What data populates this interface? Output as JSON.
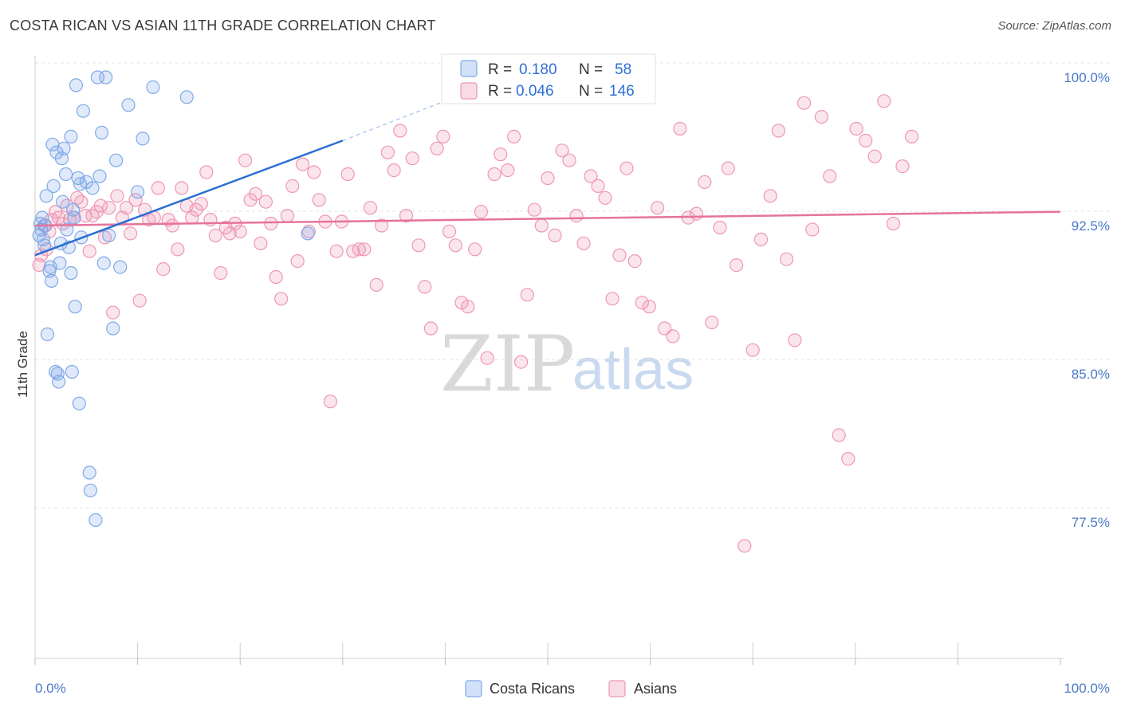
{
  "header": {
    "title": "COSTA RICAN VS ASIAN 11TH GRADE CORRELATION CHART",
    "source": "Source: ZipAtlas.com"
  },
  "watermark": {
    "zip": "ZIP",
    "atlas": "atlas"
  },
  "colors": {
    "blue": "#7fa9e8",
    "blue_fill": "rgba(127,169,232,0.25)",
    "blue_line": "#2b6fd1",
    "pink": "#ee97b3",
    "pink_fill": "rgba(238,151,179,0.25)",
    "pink_line": "#e5739b",
    "grid": "#e3e3e3",
    "tick_text": "#4a78c9"
  },
  "legend_box": {
    "rows": [
      {
        "r_label": "R =",
        "r_value": "0.180",
        "n_label": "N =",
        "n_value": "58"
      },
      {
        "r_label": "R =",
        "r_value": "0.046",
        "n_label": "N =",
        "n_value": "146"
      }
    ]
  },
  "bottom_legend": [
    "Costa Ricans",
    "Asians"
  ],
  "chart_data": {
    "type": "scatter",
    "title": "COSTA RICAN VS ASIAN 11TH GRADE CORRELATION CHART",
    "xlabel": "",
    "ylabel": "11th Grade",
    "xlim": [
      0,
      100
    ],
    "ylim": [
      70.0,
      101.0
    ],
    "x_tick_labels": [
      "0.0%",
      "100.0%"
    ],
    "y_ticks": [
      77.5,
      85.0,
      92.5,
      100.0
    ],
    "y_tick_labels": [
      "77.5%",
      "85.0%",
      "92.5%",
      "100.0%"
    ],
    "grid": true,
    "legend_position": "top-center",
    "series": [
      {
        "name": "Costa Ricans",
        "r": 0.18,
        "n": 58,
        "trend": {
          "x": [
            0.0,
            30.0
          ],
          "y": [
            91.0,
            96.8
          ],
          "dashed_to": [
            40.0,
            98.8
          ]
        },
        "x": [
          0.4,
          0.5,
          0.6,
          0.7,
          0.8,
          0.9,
          1.0,
          1.1,
          1.2,
          1.4,
          1.5,
          1.6,
          1.7,
          1.8,
          2.0,
          2.1,
          2.2,
          2.3,
          2.4,
          2.5,
          2.6,
          2.7,
          2.8,
          3.0,
          3.1,
          3.3,
          3.5,
          3.5,
          3.6,
          3.7,
          3.8,
          3.9,
          4.0,
          4.2,
          4.3,
          4.4,
          4.5,
          4.7,
          5.0,
          5.3,
          5.4,
          5.6,
          5.9,
          6.1,
          6.3,
          6.5,
          6.7,
          6.9,
          7.2,
          7.6,
          7.9,
          8.3,
          9.1,
          10.0,
          10.5,
          11.5,
          14.8,
          26.6
        ],
        "y": [
          92.0,
          92.6,
          92.3,
          92.9,
          91.8,
          91.5,
          92.5,
          94.0,
          87.0,
          90.2,
          90.4,
          89.7,
          96.6,
          94.5,
          85.1,
          96.2,
          85.0,
          84.6,
          90.6,
          91.6,
          95.9,
          93.7,
          96.4,
          95.1,
          92.3,
          91.4,
          97.0,
          90.1,
          85.1,
          93.3,
          92.9,
          88.4,
          99.6,
          94.9,
          83.5,
          94.6,
          91.9,
          98.3,
          94.7,
          80.0,
          79.1,
          94.4,
          77.6,
          100.0,
          95.0,
          97.2,
          90.6,
          100.0,
          92.0,
          87.3,
          95.8,
          90.4,
          98.6,
          94.2,
          96.9,
          99.5,
          99.0,
          92.1
        ]
      },
      {
        "name": "Asians",
        "r": 0.046,
        "n": 146,
        "trend": {
          "x": [
            0.0,
            100.0
          ],
          "y": [
            92.5,
            93.2
          ]
        },
        "x": [
          0.4,
          0.6,
          0.9,
          1.1,
          1.4,
          1.6,
          2.0,
          2.3,
          2.7,
          3.1,
          3.4,
          3.8,
          4.1,
          4.5,
          4.9,
          5.3,
          5.6,
          6.0,
          6.4,
          6.8,
          7.2,
          7.6,
          8.0,
          8.5,
          8.9,
          9.3,
          9.8,
          10.2,
          10.7,
          11.1,
          11.6,
          12.0,
          12.5,
          13.0,
          13.4,
          13.9,
          14.3,
          14.8,
          15.3,
          15.7,
          16.2,
          16.7,
          17.1,
          17.6,
          18.1,
          18.6,
          19.0,
          19.5,
          20.0,
          20.5,
          21.0,
          21.5,
          22.0,
          22.5,
          23.0,
          23.5,
          24.0,
          24.6,
          25.1,
          25.6,
          26.1,
          26.7,
          27.2,
          27.7,
          28.3,
          28.8,
          29.4,
          29.9,
          30.5,
          31.0,
          31.6,
          32.1,
          32.7,
          33.3,
          33.8,
          34.4,
          35.0,
          35.6,
          36.2,
          36.8,
          37.4,
          38.0,
          38.6,
          39.2,
          39.8,
          40.4,
          41.0,
          41.6,
          42.2,
          42.9,
          43.5,
          44.1,
          44.8,
          45.4,
          46.1,
          46.7,
          47.4,
          48.0,
          48.7,
          49.4,
          50.0,
          50.7,
          51.4,
          52.1,
          52.8,
          53.5,
          54.2,
          54.9,
          55.6,
          56.3,
          57.0,
          57.7,
          58.5,
          59.2,
          59.9,
          60.7,
          61.4,
          62.2,
          62.9,
          63.7,
          64.5,
          65.3,
          66.0,
          66.8,
          67.6,
          68.4,
          69.2,
          70.0,
          70.8,
          71.7,
          72.5,
          73.3,
          74.1,
          75.0,
          75.8,
          76.7,
          77.5,
          78.4,
          79.3,
          80.1,
          81.0,
          81.9,
          82.8,
          83.7,
          84.6,
          85.5
        ],
        "y": [
          90.5,
          91.0,
          92.5,
          91.3,
          92.2,
          92.8,
          93.2,
          92.9,
          92.6,
          93.5,
          92.8,
          92.9,
          93.9,
          93.7,
          93.0,
          91.2,
          93.0,
          93.2,
          93.5,
          91.9,
          93.4,
          88.1,
          94.0,
          92.9,
          93.4,
          92.1,
          93.8,
          88.7,
          93.3,
          92.8,
          92.9,
          94.4,
          90.3,
          92.8,
          92.5,
          91.3,
          94.4,
          93.5,
          92.9,
          93.3,
          93.6,
          95.2,
          92.8,
          92.0,
          90.1,
          92.4,
          92.1,
          92.6,
          92.2,
          95.8,
          93.8,
          94.1,
          91.6,
          93.7,
          92.6,
          89.9,
          88.8,
          93.0,
          94.5,
          90.7,
          95.6,
          92.2,
          95.2,
          93.8,
          92.7,
          83.6,
          91.2,
          92.7,
          95.1,
          91.2,
          91.3,
          91.3,
          93.4,
          89.5,
          92.5,
          96.2,
          95.3,
          97.3,
          93.0,
          95.9,
          91.5,
          89.4,
          87.3,
          96.4,
          97.0,
          92.2,
          91.5,
          88.6,
          88.4,
          91.3,
          93.2,
          85.8,
          95.1,
          96.1,
          95.3,
          97.0,
          85.6,
          89.0,
          93.3,
          92.5,
          94.9,
          92.0,
          96.3,
          95.8,
          93.0,
          91.6,
          95.0,
          94.5,
          93.9,
          88.8,
          91.0,
          95.4,
          90.7,
          88.6,
          88.4,
          93.4,
          87.3,
          86.9,
          97.4,
          92.9,
          93.1,
          94.7,
          87.6,
          92.4,
          95.4,
          90.5,
          76.3,
          86.2,
          91.8,
          94.0,
          97.3,
          90.8,
          86.7,
          98.7,
          92.3,
          98.0,
          95.0,
          81.9,
          80.7,
          97.4,
          96.8,
          96.0,
          98.8,
          92.6,
          95.5,
          97.0
        ]
      }
    ]
  }
}
